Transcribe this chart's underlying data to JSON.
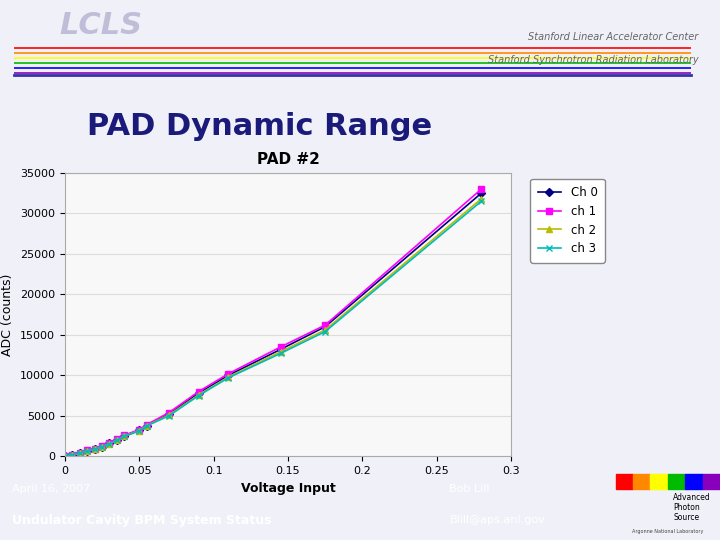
{
  "slide_title": "PAD Dynamic Range",
  "slide_title_color": "#1a1a7a",
  "slide_bg": "#f0f0f8",
  "footer_bg": "#4444aa",
  "footer_left_top": "April 16, 2007",
  "footer_left_bottom": "Undulator Cavity BPM System Status",
  "footer_right_top": "Bob Lill",
  "footer_right_bottom": "Blill@aps.anl.gov",
  "footer_text_color": "#ffffff",
  "chart_title": "PAD #2",
  "xlabel": "Voltage Input",
  "ylabel": "ADC (counts)",
  "xlim": [
    0,
    0.3
  ],
  "ylim": [
    0,
    35000
  ],
  "xticks": [
    0,
    0.05,
    0.1,
    0.15,
    0.2,
    0.25,
    0.3
  ],
  "yticks": [
    0,
    5000,
    10000,
    15000,
    20000,
    25000,
    30000,
    35000
  ],
  "ch0_x": [
    0.0,
    0.005,
    0.01,
    0.015,
    0.02,
    0.025,
    0.03,
    0.035,
    0.04,
    0.05,
    0.055,
    0.07,
    0.09,
    0.11,
    0.145,
    0.175,
    0.28
  ],
  "ch0_y": [
    0,
    200,
    400,
    700,
    900,
    1200,
    1600,
    2000,
    2500,
    3200,
    3800,
    5200,
    7800,
    10000,
    13200,
    16000,
    32500
  ],
  "ch1_x": [
    0.0,
    0.005,
    0.01,
    0.015,
    0.02,
    0.025,
    0.03,
    0.035,
    0.04,
    0.05,
    0.055,
    0.07,
    0.09,
    0.11,
    0.145,
    0.175,
    0.28
  ],
  "ch1_y": [
    0,
    200,
    450,
    750,
    950,
    1250,
    1700,
    2100,
    2600,
    3300,
    3900,
    5400,
    8000,
    10200,
    13500,
    16200,
    33000
  ],
  "ch2_x": [
    0.0,
    0.005,
    0.01,
    0.015,
    0.02,
    0.025,
    0.03,
    0.035,
    0.04,
    0.05,
    0.055,
    0.07,
    0.09,
    0.11,
    0.145,
    0.175,
    0.28
  ],
  "ch2_y": [
    0,
    180,
    400,
    680,
    880,
    1180,
    1580,
    1980,
    2480,
    3180,
    3780,
    5100,
    7600,
    9800,
    12900,
    15600,
    31800
  ],
  "ch3_x": [
    0.0,
    0.005,
    0.01,
    0.015,
    0.02,
    0.025,
    0.03,
    0.035,
    0.04,
    0.05,
    0.055,
    0.07,
    0.09,
    0.11,
    0.145,
    0.175,
    0.28
  ],
  "ch3_y": [
    0,
    180,
    380,
    660,
    860,
    1160,
    1560,
    1960,
    2450,
    3150,
    3750,
    5000,
    7500,
    9700,
    12700,
    15400,
    31500
  ],
  "ch0_color": "#000080",
  "ch1_color": "#ff00ff",
  "ch2_color": "#bbbb00",
  "ch3_color": "#00bbbb",
  "ch0_marker": "D",
  "ch1_marker": "s",
  "ch2_marker": "^",
  "ch3_marker": "x",
  "line_width": 1.2,
  "marker_size": 4,
  "chart_bg": "#f8f8f8",
  "grid_color": "#dddddd",
  "rainbow_colors": [
    "#ff0000",
    "#ff8800",
    "#ffff00",
    "#00bb00",
    "#0000ff",
    "#8800bb"
  ],
  "aps_rainbow_colors": [
    "#ff0000",
    "#ff8800",
    "#ffff00",
    "#00bb00",
    "#0000ff",
    "#8800bb"
  ]
}
